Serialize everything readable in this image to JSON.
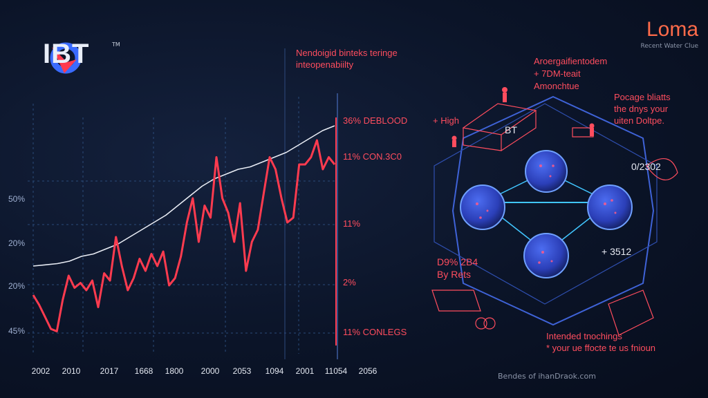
{
  "logo": {
    "text": "IBT",
    "tm": "TM"
  },
  "brand": {
    "title": "Loma",
    "subtitle": "Recent Water Clue"
  },
  "chart_data": {
    "type": "line",
    "x_labels": [
      "2002",
      "2010",
      "2017",
      "1668",
      "1800",
      "2000",
      "2053",
      "1094",
      "2001",
      "11054",
      "2056"
    ],
    "y_labels": [
      "50%",
      "20%",
      "20%",
      "45%"
    ],
    "right_labels": [
      "36% DEBLOOD",
      "11% CON.3C0",
      "11%",
      "2%",
      "11% CONLEGS"
    ],
    "annotation_top": [
      "Nendoigid binteks teringe",
      "inteopenabiilty"
    ],
    "series": [
      {
        "color": "#e8ecf4",
        "values": [
          30,
          30.5,
          31,
          32,
          34,
          35,
          37,
          39,
          42,
          45,
          48,
          51,
          55,
          59,
          63,
          66,
          68,
          70,
          71,
          73,
          75,
          77,
          80,
          83,
          86,
          88
        ]
      },
      {
        "color": "#ff3b4f",
        "values": [
          18,
          14,
          9,
          4,
          3,
          16,
          26,
          21,
          23,
          20,
          24,
          13,
          27,
          24,
          42,
          30,
          20,
          25,
          33,
          28,
          35,
          30,
          36,
          22,
          25,
          34,
          48,
          58,
          40,
          55,
          50,
          75,
          58,
          52,
          40,
          56,
          28,
          40,
          45,
          60,
          75,
          70,
          58,
          48,
          50,
          72,
          72,
          75,
          82,
          70,
          75,
          72
        ]
      }
    ]
  },
  "network": {
    "label_top": [
      "Aroergaifientodem",
      "+ 7DM-teait",
      "Amonchtue"
    ],
    "label_high": "+ High",
    "label_bt": "BT",
    "label_right": [
      "Pocage bliatts",
      "the dnys your",
      "uiten Doltpe."
    ],
    "value_right": "0/2302",
    "value_mid": "+ 3512",
    "stats": [
      "D9% 2B4",
      "By Rets"
    ],
    "bottom_note": [
      "Intended tnochings",
      "* your ue ffocte te us fnioun"
    ]
  },
  "footer": "Bendes of ihanDraok.com"
}
